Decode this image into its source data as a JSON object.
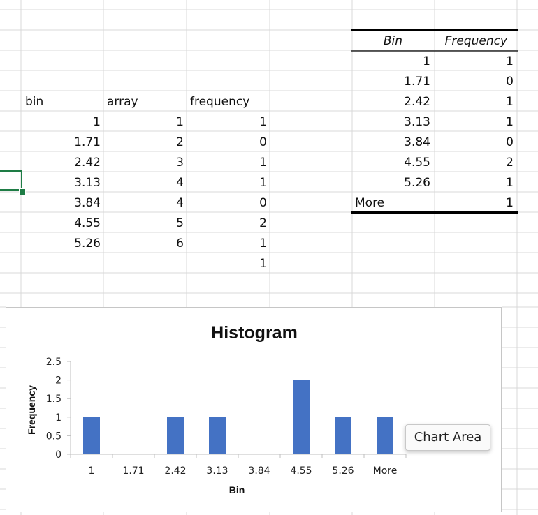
{
  "left_table": {
    "headers": {
      "bin": "bin",
      "array": "array",
      "frequency": "frequency"
    },
    "bin": [
      "1",
      "1.71",
      "2.42",
      "3.13",
      "3.84",
      "4.55",
      "5.26"
    ],
    "array": [
      "1",
      "2",
      "3",
      "4",
      "4",
      "5",
      "6"
    ],
    "frequency": [
      "1",
      "0",
      "1",
      "1",
      "0",
      "2",
      "1",
      "1"
    ]
  },
  "right_table": {
    "headers": {
      "bin": "Bin",
      "frequency": "Frequency"
    },
    "bins": [
      "1",
      "1.71",
      "2.42",
      "3.13",
      "3.84",
      "4.55",
      "5.26",
      "More"
    ],
    "frequencies": [
      "1",
      "0",
      "1",
      "1",
      "0",
      "2",
      "1",
      "1"
    ]
  },
  "tooltip": {
    "text": "Chart Area"
  },
  "chart_data": {
    "type": "bar",
    "title": "Histogram",
    "xlabel": "Bin",
    "ylabel": "Frequency",
    "categories": [
      "1",
      "1.71",
      "2.42",
      "3.13",
      "3.84",
      "4.55",
      "5.26",
      "More"
    ],
    "values": [
      1,
      0,
      1,
      1,
      0,
      2,
      1,
      1
    ],
    "ylim": [
      0,
      2.5
    ],
    "yticks": [
      "0",
      "0.5",
      "1",
      "1.5",
      "2",
      "2.5"
    ],
    "bar_color": "#4472c4",
    "grid": false,
    "legend": "none"
  },
  "colors": {
    "selection": "#1e7c45",
    "gridline": "#d9d9d9"
  }
}
